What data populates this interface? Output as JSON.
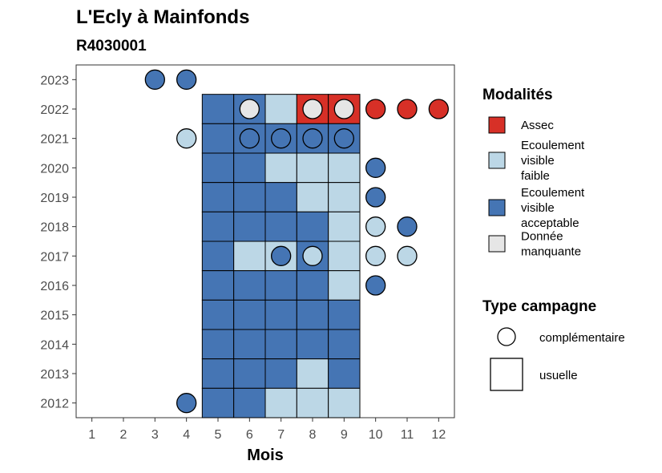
{
  "chart_data": {
    "type": "heatmap",
    "title": "L'Ecly à Mainfonds",
    "subtitle": "R4030001",
    "xlabel": "Mois",
    "ylabel": "",
    "x": [
      1,
      2,
      3,
      4,
      5,
      6,
      7,
      8,
      9,
      10,
      11,
      12
    ],
    "y": [
      2012,
      2013,
      2014,
      2015,
      2016,
      2017,
      2018,
      2019,
      2020,
      2021,
      2022,
      2023
    ],
    "legend": {
      "modalites_title": "Modalités",
      "modalites": [
        {
          "key": "assec",
          "lines": [
            "Assec"
          ],
          "color": "#d73027"
        },
        {
          "key": "faible",
          "lines": [
            "Ecoulement",
            "visible",
            "faible"
          ],
          "color": "#bcd7e6"
        },
        {
          "key": "acceptable",
          "lines": [
            "Ecoulement",
            "visible",
            "acceptable"
          ],
          "color": "#4575b4"
        },
        {
          "key": "manquante",
          "lines": [
            "Donnée",
            "manquante"
          ],
          "color": "#e6e6e6"
        }
      ],
      "campagne_title": "Type campagne",
      "campagnes": [
        {
          "key": "complementaire",
          "label": "complémentaire",
          "shape": "circle"
        },
        {
          "key": "usuelle",
          "label": "usuelle",
          "shape": "square"
        }
      ]
    },
    "usuelle": [
      {
        "year": 2022,
        "month": 5,
        "status": "acceptable"
      },
      {
        "year": 2022,
        "month": 6,
        "status": "acceptable"
      },
      {
        "year": 2022,
        "month": 7,
        "status": "faible"
      },
      {
        "year": 2022,
        "month": 8,
        "status": "assec"
      },
      {
        "year": 2022,
        "month": 9,
        "status": "assec"
      },
      {
        "year": 2021,
        "month": 5,
        "status": "acceptable"
      },
      {
        "year": 2021,
        "month": 6,
        "status": "acceptable"
      },
      {
        "year": 2021,
        "month": 7,
        "status": "acceptable"
      },
      {
        "year": 2021,
        "month": 8,
        "status": "acceptable"
      },
      {
        "year": 2021,
        "month": 9,
        "status": "acceptable"
      },
      {
        "year": 2020,
        "month": 5,
        "status": "acceptable"
      },
      {
        "year": 2020,
        "month": 6,
        "status": "acceptable"
      },
      {
        "year": 2020,
        "month": 7,
        "status": "faible"
      },
      {
        "year": 2020,
        "month": 8,
        "status": "faible"
      },
      {
        "year": 2020,
        "month": 9,
        "status": "faible"
      },
      {
        "year": 2019,
        "month": 5,
        "status": "acceptable"
      },
      {
        "year": 2019,
        "month": 6,
        "status": "acceptable"
      },
      {
        "year": 2019,
        "month": 7,
        "status": "acceptable"
      },
      {
        "year": 2019,
        "month": 8,
        "status": "faible"
      },
      {
        "year": 2019,
        "month": 9,
        "status": "faible"
      },
      {
        "year": 2018,
        "month": 5,
        "status": "acceptable"
      },
      {
        "year": 2018,
        "month": 6,
        "status": "acceptable"
      },
      {
        "year": 2018,
        "month": 7,
        "status": "acceptable"
      },
      {
        "year": 2018,
        "month": 8,
        "status": "acceptable"
      },
      {
        "year": 2018,
        "month": 9,
        "status": "faible"
      },
      {
        "year": 2017,
        "month": 5,
        "status": "acceptable"
      },
      {
        "year": 2017,
        "month": 6,
        "status": "faible"
      },
      {
        "year": 2017,
        "month": 7,
        "status": "faible"
      },
      {
        "year": 2017,
        "month": 8,
        "status": "acceptable"
      },
      {
        "year": 2017,
        "month": 9,
        "status": "faible"
      },
      {
        "year": 2016,
        "month": 5,
        "status": "acceptable"
      },
      {
        "year": 2016,
        "month": 6,
        "status": "acceptable"
      },
      {
        "year": 2016,
        "month": 7,
        "status": "acceptable"
      },
      {
        "year": 2016,
        "month": 8,
        "status": "acceptable"
      },
      {
        "year": 2016,
        "month": 9,
        "status": "faible"
      },
      {
        "year": 2015,
        "month": 5,
        "status": "acceptable"
      },
      {
        "year": 2015,
        "month": 6,
        "status": "acceptable"
      },
      {
        "year": 2015,
        "month": 7,
        "status": "acceptable"
      },
      {
        "year": 2015,
        "month": 8,
        "status": "acceptable"
      },
      {
        "year": 2015,
        "month": 9,
        "status": "acceptable"
      },
      {
        "year": 2014,
        "month": 5,
        "status": "acceptable"
      },
      {
        "year": 2014,
        "month": 6,
        "status": "acceptable"
      },
      {
        "year": 2014,
        "month": 7,
        "status": "acceptable"
      },
      {
        "year": 2014,
        "month": 8,
        "status": "acceptable"
      },
      {
        "year": 2014,
        "month": 9,
        "status": "acceptable"
      },
      {
        "year": 2013,
        "month": 5,
        "status": "acceptable"
      },
      {
        "year": 2013,
        "month": 6,
        "status": "acceptable"
      },
      {
        "year": 2013,
        "month": 7,
        "status": "acceptable"
      },
      {
        "year": 2013,
        "month": 8,
        "status": "faible"
      },
      {
        "year": 2013,
        "month": 9,
        "status": "acceptable"
      },
      {
        "year": 2012,
        "month": 5,
        "status": "acceptable"
      },
      {
        "year": 2012,
        "month": 6,
        "status": "acceptable"
      },
      {
        "year": 2012,
        "month": 7,
        "status": "faible"
      },
      {
        "year": 2012,
        "month": 8,
        "status": "faible"
      },
      {
        "year": 2012,
        "month": 9,
        "status": "faible"
      }
    ],
    "complementaire": [
      {
        "year": 2023,
        "month": 3,
        "status": "acceptable"
      },
      {
        "year": 2023,
        "month": 4,
        "status": "acceptable"
      },
      {
        "year": 2022,
        "month": 6,
        "status": "manquante"
      },
      {
        "year": 2022,
        "month": 8,
        "status": "manquante"
      },
      {
        "year": 2022,
        "month": 9,
        "status": "manquante"
      },
      {
        "year": 2022,
        "month": 10,
        "status": "assec"
      },
      {
        "year": 2022,
        "month": 11,
        "status": "assec"
      },
      {
        "year": 2022,
        "month": 12,
        "status": "assec"
      },
      {
        "year": 2021,
        "month": 4,
        "status": "faible"
      },
      {
        "year": 2021,
        "month": 6,
        "status": "acceptable"
      },
      {
        "year": 2021,
        "month": 7,
        "status": "acceptable"
      },
      {
        "year": 2021,
        "month": 8,
        "status": "acceptable"
      },
      {
        "year": 2021,
        "month": 9,
        "status": "acceptable"
      },
      {
        "year": 2020,
        "month": 10,
        "status": "acceptable"
      },
      {
        "year": 2019,
        "month": 10,
        "status": "acceptable"
      },
      {
        "year": 2018,
        "month": 10,
        "status": "faible"
      },
      {
        "year": 2018,
        "month": 11,
        "status": "acceptable"
      },
      {
        "year": 2017,
        "month": 7,
        "status": "acceptable"
      },
      {
        "year": 2017,
        "month": 8,
        "status": "faible"
      },
      {
        "year": 2017,
        "month": 10,
        "status": "faible"
      },
      {
        "year": 2017,
        "month": 11,
        "status": "faible"
      },
      {
        "year": 2016,
        "month": 10,
        "status": "acceptable"
      },
      {
        "year": 2012,
        "month": 4,
        "status": "acceptable"
      }
    ],
    "xlim": [
      0.5,
      12.5
    ],
    "ylim": [
      2011.5,
      2023.5
    ],
    "grid": false,
    "legend_position": "right"
  }
}
